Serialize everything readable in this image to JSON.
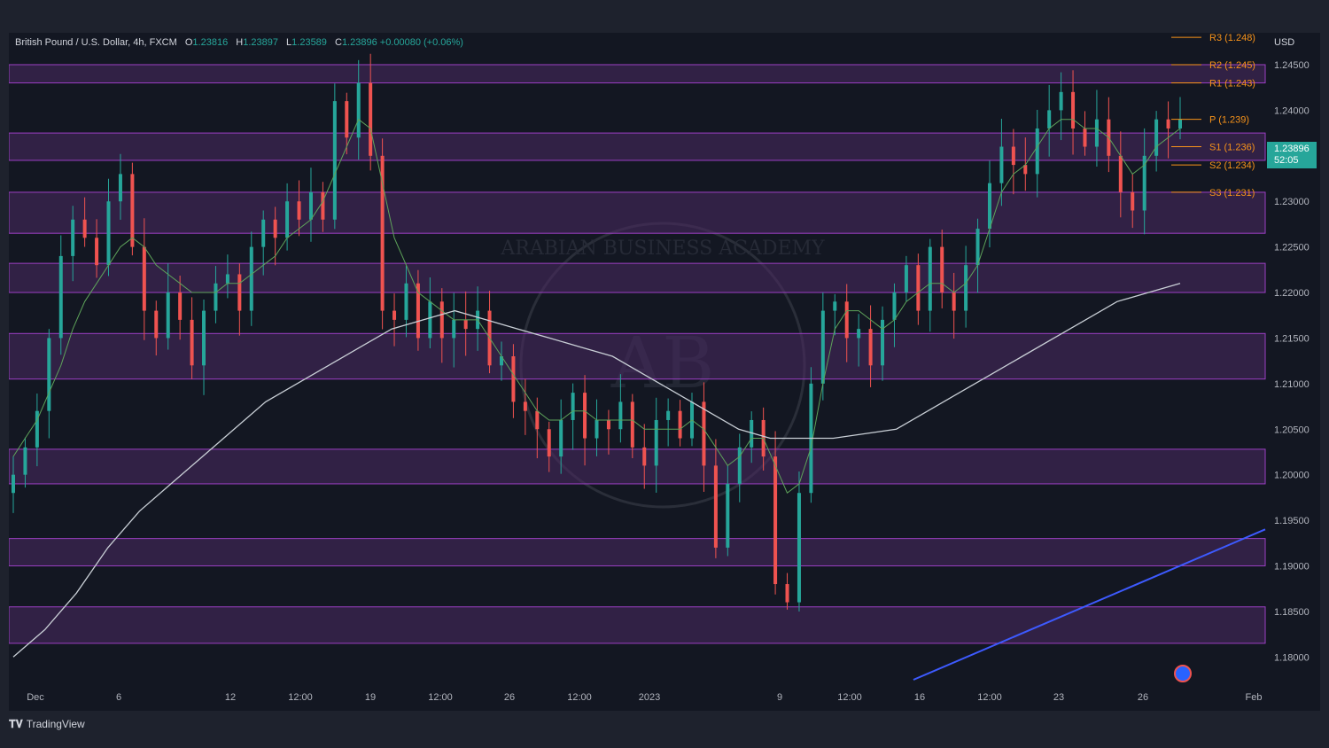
{
  "legend": {
    "symbol": "British Pound / U.S. Dollar, 4h, FXCM",
    "o_label": "O",
    "o_value": "1.23816",
    "h_label": "H",
    "h_value": "1.23897",
    "l_label": "L",
    "l_value": "1.23589",
    "c_label": "C",
    "c_value": "1.23896",
    "change": "+0.00080 (+0.06%)"
  },
  "currency": "USD",
  "price_tag": {
    "price": "1.23896",
    "countdown": "52:05"
  },
  "footer": {
    "brand": "TradingView"
  },
  "watermark": {
    "center_text": "ARABIAN BUSINESS ACADEMY",
    "monogram": "AB"
  },
  "colors": {
    "up": "#26a69a",
    "down": "#ef5350",
    "zone_fill": "#4a2a63",
    "zone_stroke": "#9c3fc4",
    "ma_fast": "#5ea35a",
    "ma_slow": "#c9cfd6",
    "trendline": "#3d5afe",
    "pivot": "#f7931a"
  },
  "chart_data": {
    "type": "candlestick",
    "title": "British Pound / U.S. Dollar, 4h, FXCM",
    "y_ticks": [
      "1.24500",
      "1.24000",
      "1.23500",
      "1.23000",
      "1.22500",
      "1.22000",
      "1.21500",
      "1.21000",
      "1.20500",
      "1.20000",
      "1.19500",
      "1.19000",
      "1.18500",
      "1.18000"
    ],
    "ylim": [
      1.1775,
      1.2485
    ],
    "x_ticks": [
      "Dec",
      "6",
      "12",
      "12:00",
      "19",
      "12:00",
      "26",
      "12:00",
      "2023",
      "9",
      "12:00",
      "16",
      "12:00",
      "23",
      "26",
      "Feb"
    ],
    "price_path": [
      [
        1.2,
        1.203,
        1.207,
        1.215,
        1.224,
        1.228,
        1.226,
        1.223,
        1.23,
        1.233,
        1.225,
        1.218,
        1.215,
        1.22,
        1.217,
        1.212,
        1.218,
        1.221,
        1.222,
        1.218,
        1.225,
        1.228,
        1.226,
        1.23,
        1.228,
        1.231,
        1.228,
        1.241,
        1.237,
        1.243,
        1.235,
        1.218,
        1.217,
        1.221,
        1.215,
        1.219,
        1.215,
        1.217,
        1.216,
        1.218,
        1.212,
        1.213,
        1.208,
        1.207,
        1.205,
        1.202,
        1.206,
        1.209,
        1.204,
        1.206,
        1.205,
        1.208,
        1.203,
        1.201,
        1.206,
        1.207,
        1.204,
        1.208,
        1.201,
        1.192,
        1.199,
        1.203,
        1.206,
        1.202,
        1.188,
        1.186,
        1.198,
        1.21,
        1.218,
        1.219,
        1.215,
        1.216,
        1.212,
        1.217,
        1.22,
        1.223,
        1.218,
        1.225,
        1.22,
        1.218,
        1.223,
        1.227,
        1.232,
        1.236,
        1.234,
        1.233,
        1.238,
        1.24,
        1.242,
        1.238,
        1.236,
        1.239,
        1.235,
        1.231,
        1.229,
        1.235,
        1.239,
        1.238,
        1.239
      ]
    ],
    "series": [
      {
        "name": "",
        "kind": "moving-average-fast",
        "values": [
          1.202,
          1.204,
          1.206,
          1.209,
          1.212,
          1.216,
          1.219,
          1.221,
          1.223,
          1.225,
          1.226,
          1.225,
          1.223,
          1.222,
          1.221,
          1.22,
          1.22,
          1.22,
          1.221,
          1.221,
          1.222,
          1.223,
          1.224,
          1.226,
          1.227,
          1.228,
          1.23,
          1.233,
          1.236,
          1.239,
          1.238,
          1.232,
          1.226,
          1.223,
          1.22,
          1.219,
          1.218,
          1.217,
          1.217,
          1.217,
          1.215,
          1.213,
          1.211,
          1.209,
          1.207,
          1.206,
          1.206,
          1.207,
          1.207,
          1.206,
          1.206,
          1.206,
          1.206,
          1.205,
          1.205,
          1.205,
          1.205,
          1.206,
          1.205,
          1.203,
          1.201,
          1.202,
          1.204,
          1.204,
          1.201,
          1.198,
          1.199,
          1.203,
          1.21,
          1.216,
          1.218,
          1.218,
          1.217,
          1.216,
          1.217,
          1.219,
          1.22,
          1.221,
          1.221,
          1.22,
          1.221,
          1.223,
          1.227,
          1.231,
          1.233,
          1.234,
          1.236,
          1.238,
          1.239,
          1.239,
          1.238,
          1.238,
          1.237,
          1.235,
          1.233,
          1.234,
          1.236,
          1.237,
          1.238
        ]
      },
      {
        "name": "",
        "kind": "moving-average-slow",
        "values": [
          1.18,
          1.183,
          1.187,
          1.192,
          1.196,
          1.199,
          1.202,
          1.205,
          1.208,
          1.21,
          1.212,
          1.214,
          1.216,
          1.217,
          1.218,
          1.217,
          1.216,
          1.215,
          1.214,
          1.213,
          1.211,
          1.209,
          1.207,
          1.205,
          1.204,
          1.204,
          1.204,
          1.2045,
          1.205,
          1.207,
          1.209,
          1.211,
          1.213,
          1.215,
          1.217,
          1.219,
          1.22,
          1.221
        ]
      }
    ],
    "pivot_levels": [
      {
        "label": "R3 (1.248)",
        "value": 1.248
      },
      {
        "label": "R2 (1.245)",
        "value": 1.245
      },
      {
        "label": "R1 (1.243)",
        "value": 1.243
      },
      {
        "label": "P (1.239)",
        "value": 1.239
      },
      {
        "label": "S1 (1.236)",
        "value": 1.236
      },
      {
        "label": "S2 (1.234)",
        "value": 1.234
      },
      {
        "label": "S3 (1.231)",
        "value": 1.231
      }
    ],
    "zones": [
      [
        1.243,
        1.245
      ],
      [
        1.2345,
        1.2375
      ],
      [
        1.2265,
        1.231
      ],
      [
        1.22,
        1.2232
      ],
      [
        1.2105,
        1.2155
      ],
      [
        1.199,
        1.2028
      ],
      [
        1.19,
        1.193
      ],
      [
        1.1815,
        1.1855
      ]
    ],
    "trendline": {
      "from": [
        0.72,
        1.1775
      ],
      "to": [
        1.0,
        1.194
      ]
    },
    "grid": false
  }
}
